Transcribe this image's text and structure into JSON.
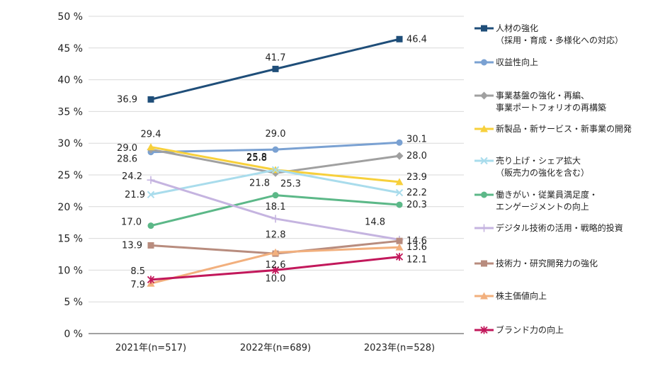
{
  "chart_data": {
    "type": "line",
    "categories": [
      "2021年(n=517)",
      "2022年(n=689)",
      "2023年(n=528)"
    ],
    "ylim": [
      0,
      50
    ],
    "yticks": [
      "0 %",
      "5 %",
      "10 %",
      "15 %",
      "20 %",
      "25 %",
      "30 %",
      "35 %",
      "40 %",
      "45 %",
      "50 %"
    ],
    "ytick_values": [
      0,
      5,
      10,
      15,
      20,
      25,
      30,
      35,
      40,
      45,
      50
    ],
    "grid": "horizontal",
    "legend": "right",
    "series": [
      {
        "name": "人材の強化",
        "sub": "（採用・育成・多様化への対応）",
        "values": [
          36.9,
          41.7,
          46.4
        ],
        "labels": [
          "36.9",
          "41.7",
          "46.4"
        ],
        "color": "#1f4e79",
        "marker": "square"
      },
      {
        "name": "収益性向上",
        "values": [
          28.6,
          29.0,
          30.1
        ],
        "labels": [
          "28.6",
          "29.0",
          "30.1"
        ],
        "color": "#7aa1d2",
        "marker": "circle"
      },
      {
        "name": "事業基盤の強化・再編、",
        "sub": "事業ポートフォリオの再構築",
        "values": [
          29.0,
          25.3,
          28.0
        ],
        "labels": [
          "29.0",
          "25.3",
          "28.0"
        ],
        "color": "#a0a0a0",
        "marker": "diamond"
      },
      {
        "name": "新製品・新サービス・新事業の開発",
        "values": [
          29.4,
          25.8,
          23.9
        ],
        "labels": [
          "29.4",
          "25.8",
          "23.9"
        ],
        "color": "#f7d03c",
        "marker": "triangle"
      },
      {
        "name": "売り上げ・シェア拡大",
        "sub": "（販売力の強化を含む）",
        "values": [
          21.9,
          25.8,
          22.2
        ],
        "labels": [
          "21.9",
          "25.8",
          "22.2"
        ],
        "color": "#a9dcec",
        "marker": "x"
      },
      {
        "name": "働きがい・従業員満足度・",
        "sub": "エンゲージメントの向上",
        "values": [
          17.0,
          21.8,
          20.3
        ],
        "labels": [
          "17.0",
          "21.8",
          "20.3"
        ],
        "color": "#5cb888",
        "marker": "circle"
      },
      {
        "name": "デジタル技術の活用・戦略的投資",
        "values": [
          24.2,
          18.1,
          14.8
        ],
        "labels": [
          "24.2",
          "18.1",
          "14.8"
        ],
        "color": "#c5b4e0",
        "marker": "plus"
      },
      {
        "name": "技術力・研究開発力の強化",
        "values": [
          13.9,
          12.6,
          14.6
        ],
        "labels": [
          "13.9",
          "12.6",
          "14.6"
        ],
        "color": "#b88c7e",
        "marker": "square"
      },
      {
        "name": "株主価値向上",
        "values": [
          7.9,
          12.8,
          13.6
        ],
        "labels": [
          "7.9",
          "12.8",
          "13.6"
        ],
        "color": "#f2b07e",
        "marker": "triangle"
      },
      {
        "name": "ブランド力の向上",
        "values": [
          8.5,
          10.0,
          12.1
        ],
        "labels": [
          "8.5",
          "10.0",
          "12.1"
        ],
        "color": "#c2185b",
        "marker": "star"
      }
    ]
  }
}
